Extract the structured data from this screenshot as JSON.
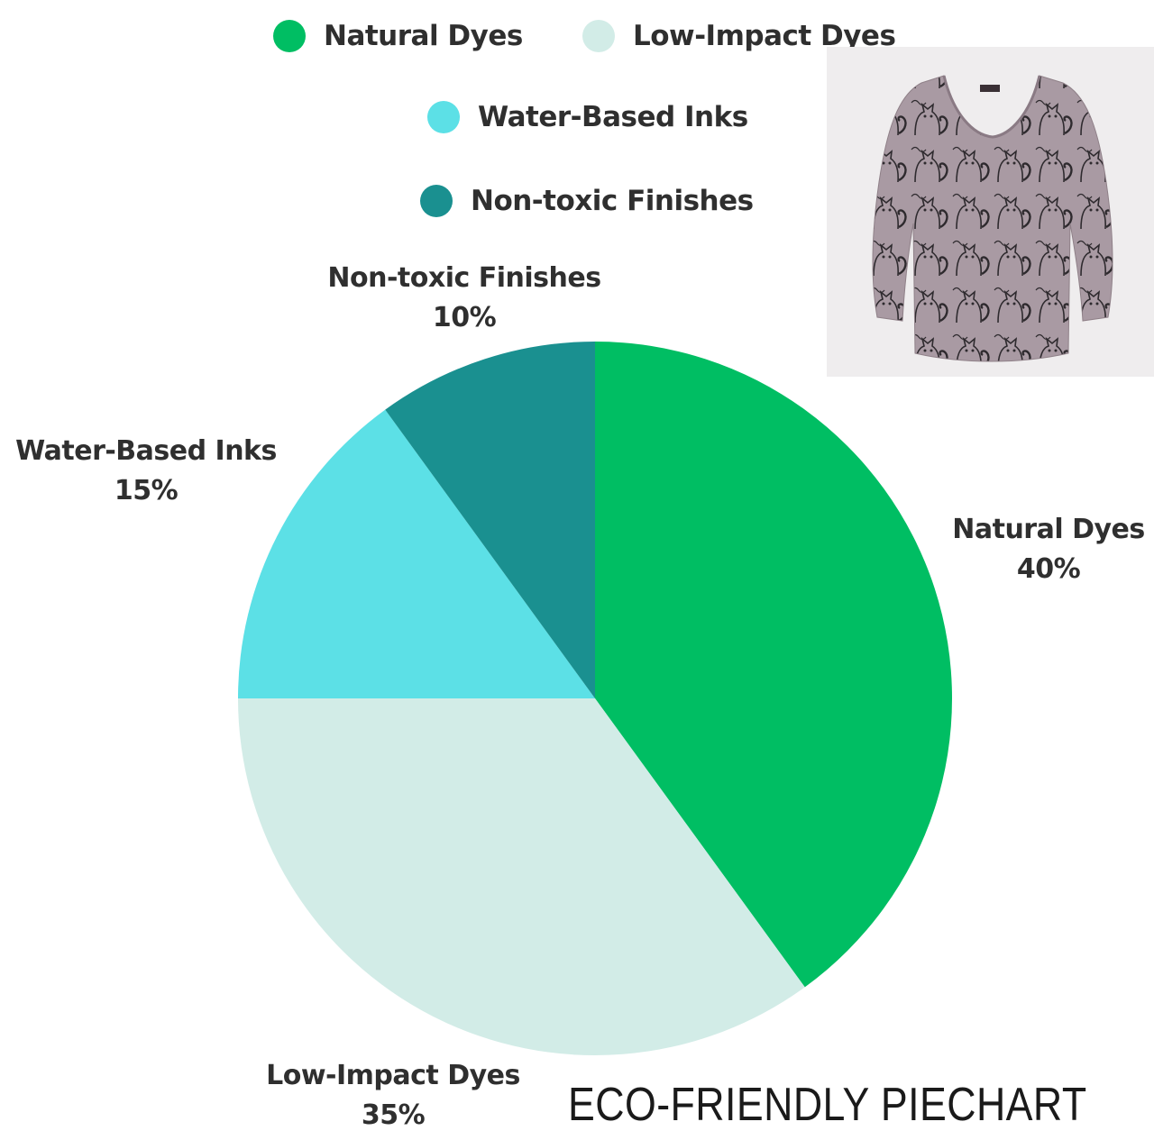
{
  "chart_data": {
    "type": "pie",
    "title": "",
    "legend_position": "top",
    "slices": [
      {
        "label": "Natural Dyes",
        "value": 40,
        "value_label": "40%",
        "color": "#00be63"
      },
      {
        "label": "Low-Impact Dyes",
        "value": 35,
        "value_label": "35%",
        "color": "#d2ece7"
      },
      {
        "label": "Water-Based Inks",
        "value": 15,
        "value_label": "15%",
        "color": "#5ce0e6"
      },
      {
        "label": "Non-toxic Finishes",
        "value": 10,
        "value_label": "10%",
        "color": "#1a9090"
      }
    ]
  },
  "legend": [
    {
      "label": "Natural Dyes",
      "color": "#00be63"
    },
    {
      "label": "Low-Impact Dyes",
      "color": "#d2ece7"
    },
    {
      "label": "Water-Based Inks",
      "color": "#5ce0e6"
    },
    {
      "label": "Non-toxic Finishes",
      "color": "#1a9090"
    }
  ],
  "product_image": {
    "icon": "blouse-photo-icon",
    "fabric_color": "#a99aa3"
  },
  "caption": "ECO-FRIENDLY PIECHART"
}
